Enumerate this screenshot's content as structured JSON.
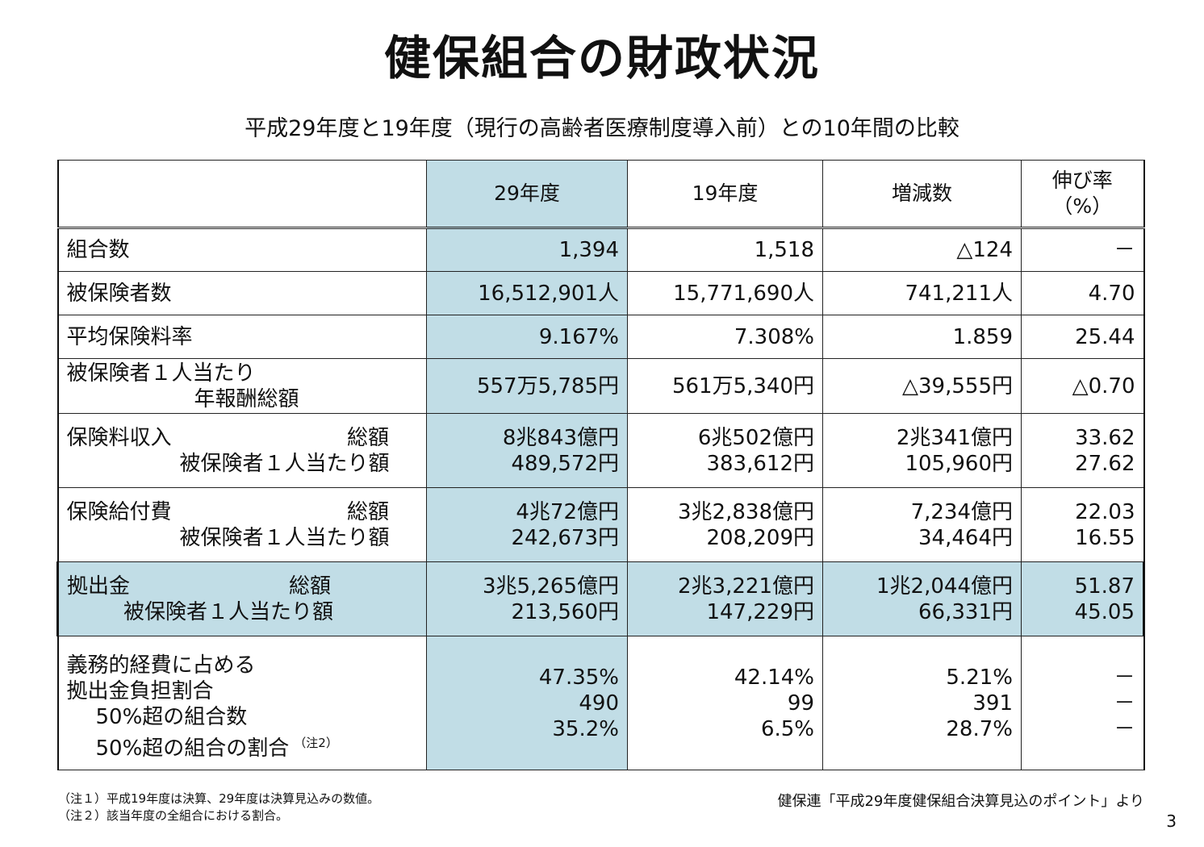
{
  "title": "健保組合の財政状況",
  "subtitle": "平成29年度と19年度（現行の高齢者医療制度導入前）との10年間の比較",
  "header": {
    "col_blank": "",
    "col_29": "29年度",
    "col_19": "19年度",
    "col_diff": "増減数",
    "col_rate_line1": "伸び率",
    "col_rate_line2": "（%）"
  },
  "rows": {
    "kumiai": {
      "label": "組合数",
      "v29": "1,394",
      "v19": "1,518",
      "diff": "△124",
      "rate": "－"
    },
    "hihoken": {
      "label": "被保険者数",
      "v29": "16,512,901人",
      "v19": "15,771,690人",
      "diff": "741,211人",
      "rate": "4.70"
    },
    "hokenryoritsu": {
      "label": "平均保険料率",
      "v29": "9.167%",
      "v19": "7.308%",
      "diff": "1.859",
      "rate": "25.44"
    },
    "houshu": {
      "label1": "被保険者１人当たり",
      "label2": "年報酬総額",
      "v29": "557万5,785円",
      "v19": "561万5,340円",
      "diff": "△39,555円",
      "rate": "△0.70"
    },
    "shunyu": {
      "label1": "保険料収入",
      "label1_right": "総額",
      "label2": "被保険者１人当たり額",
      "v29_1": "8兆843億円",
      "v29_2": "489,572円",
      "v19_1": "6兆502億円",
      "v19_2": "383,612円",
      "diff_1": "2兆341億円",
      "diff_2": "105,960円",
      "rate_1": "33.62",
      "rate_2": "27.62"
    },
    "kyufu": {
      "label1": "保険給付費",
      "label1_right": "総額",
      "label2": "被保険者１人当たり額",
      "v29_1": "4兆72億円",
      "v29_2": "242,673円",
      "v19_1": "3兆2,838億円",
      "v19_2": "208,209円",
      "diff_1": "7,234億円",
      "diff_2": "34,464円",
      "rate_1": "22.03",
      "rate_2": "16.55"
    },
    "kyoshutsu": {
      "label1": "拠出金",
      "label1_right": "総額",
      "label2": "被保険者１人当たり額",
      "v29_1": "3兆5,265億円",
      "v29_2": "213,560円",
      "v19_1": "2兆3,221億円",
      "v19_2": "147,229円",
      "diff_1": "1兆2,044億円",
      "diff_2": "66,331円",
      "rate_1": "51.87",
      "rate_2": "45.05"
    },
    "futan": {
      "label1": "義務的経費に占める",
      "label2": "拠出金負担割合",
      "label3": "50%超の組合数",
      "label4": "50%超の組合の割合",
      "label4_note": "（注2）",
      "v29_1": "47.35%",
      "v29_2": "490",
      "v29_3": "35.2%",
      "v19_1": "42.14%",
      "v19_2": "99",
      "v19_3": "6.5%",
      "diff_1": "5.21%",
      "diff_2": "391",
      "diff_3": "28.7%",
      "rate_1": "－",
      "rate_2": "－",
      "rate_3": "－"
    }
  },
  "notes": {
    "note1": "（注１）平成19年度は決算、29年度は決算見込みの数値。",
    "note2": "（注２）該当年度の全組合における割合。"
  },
  "source": "健保連「平成29年度健保組合決算見込のポイント」より",
  "page_number": "3"
}
